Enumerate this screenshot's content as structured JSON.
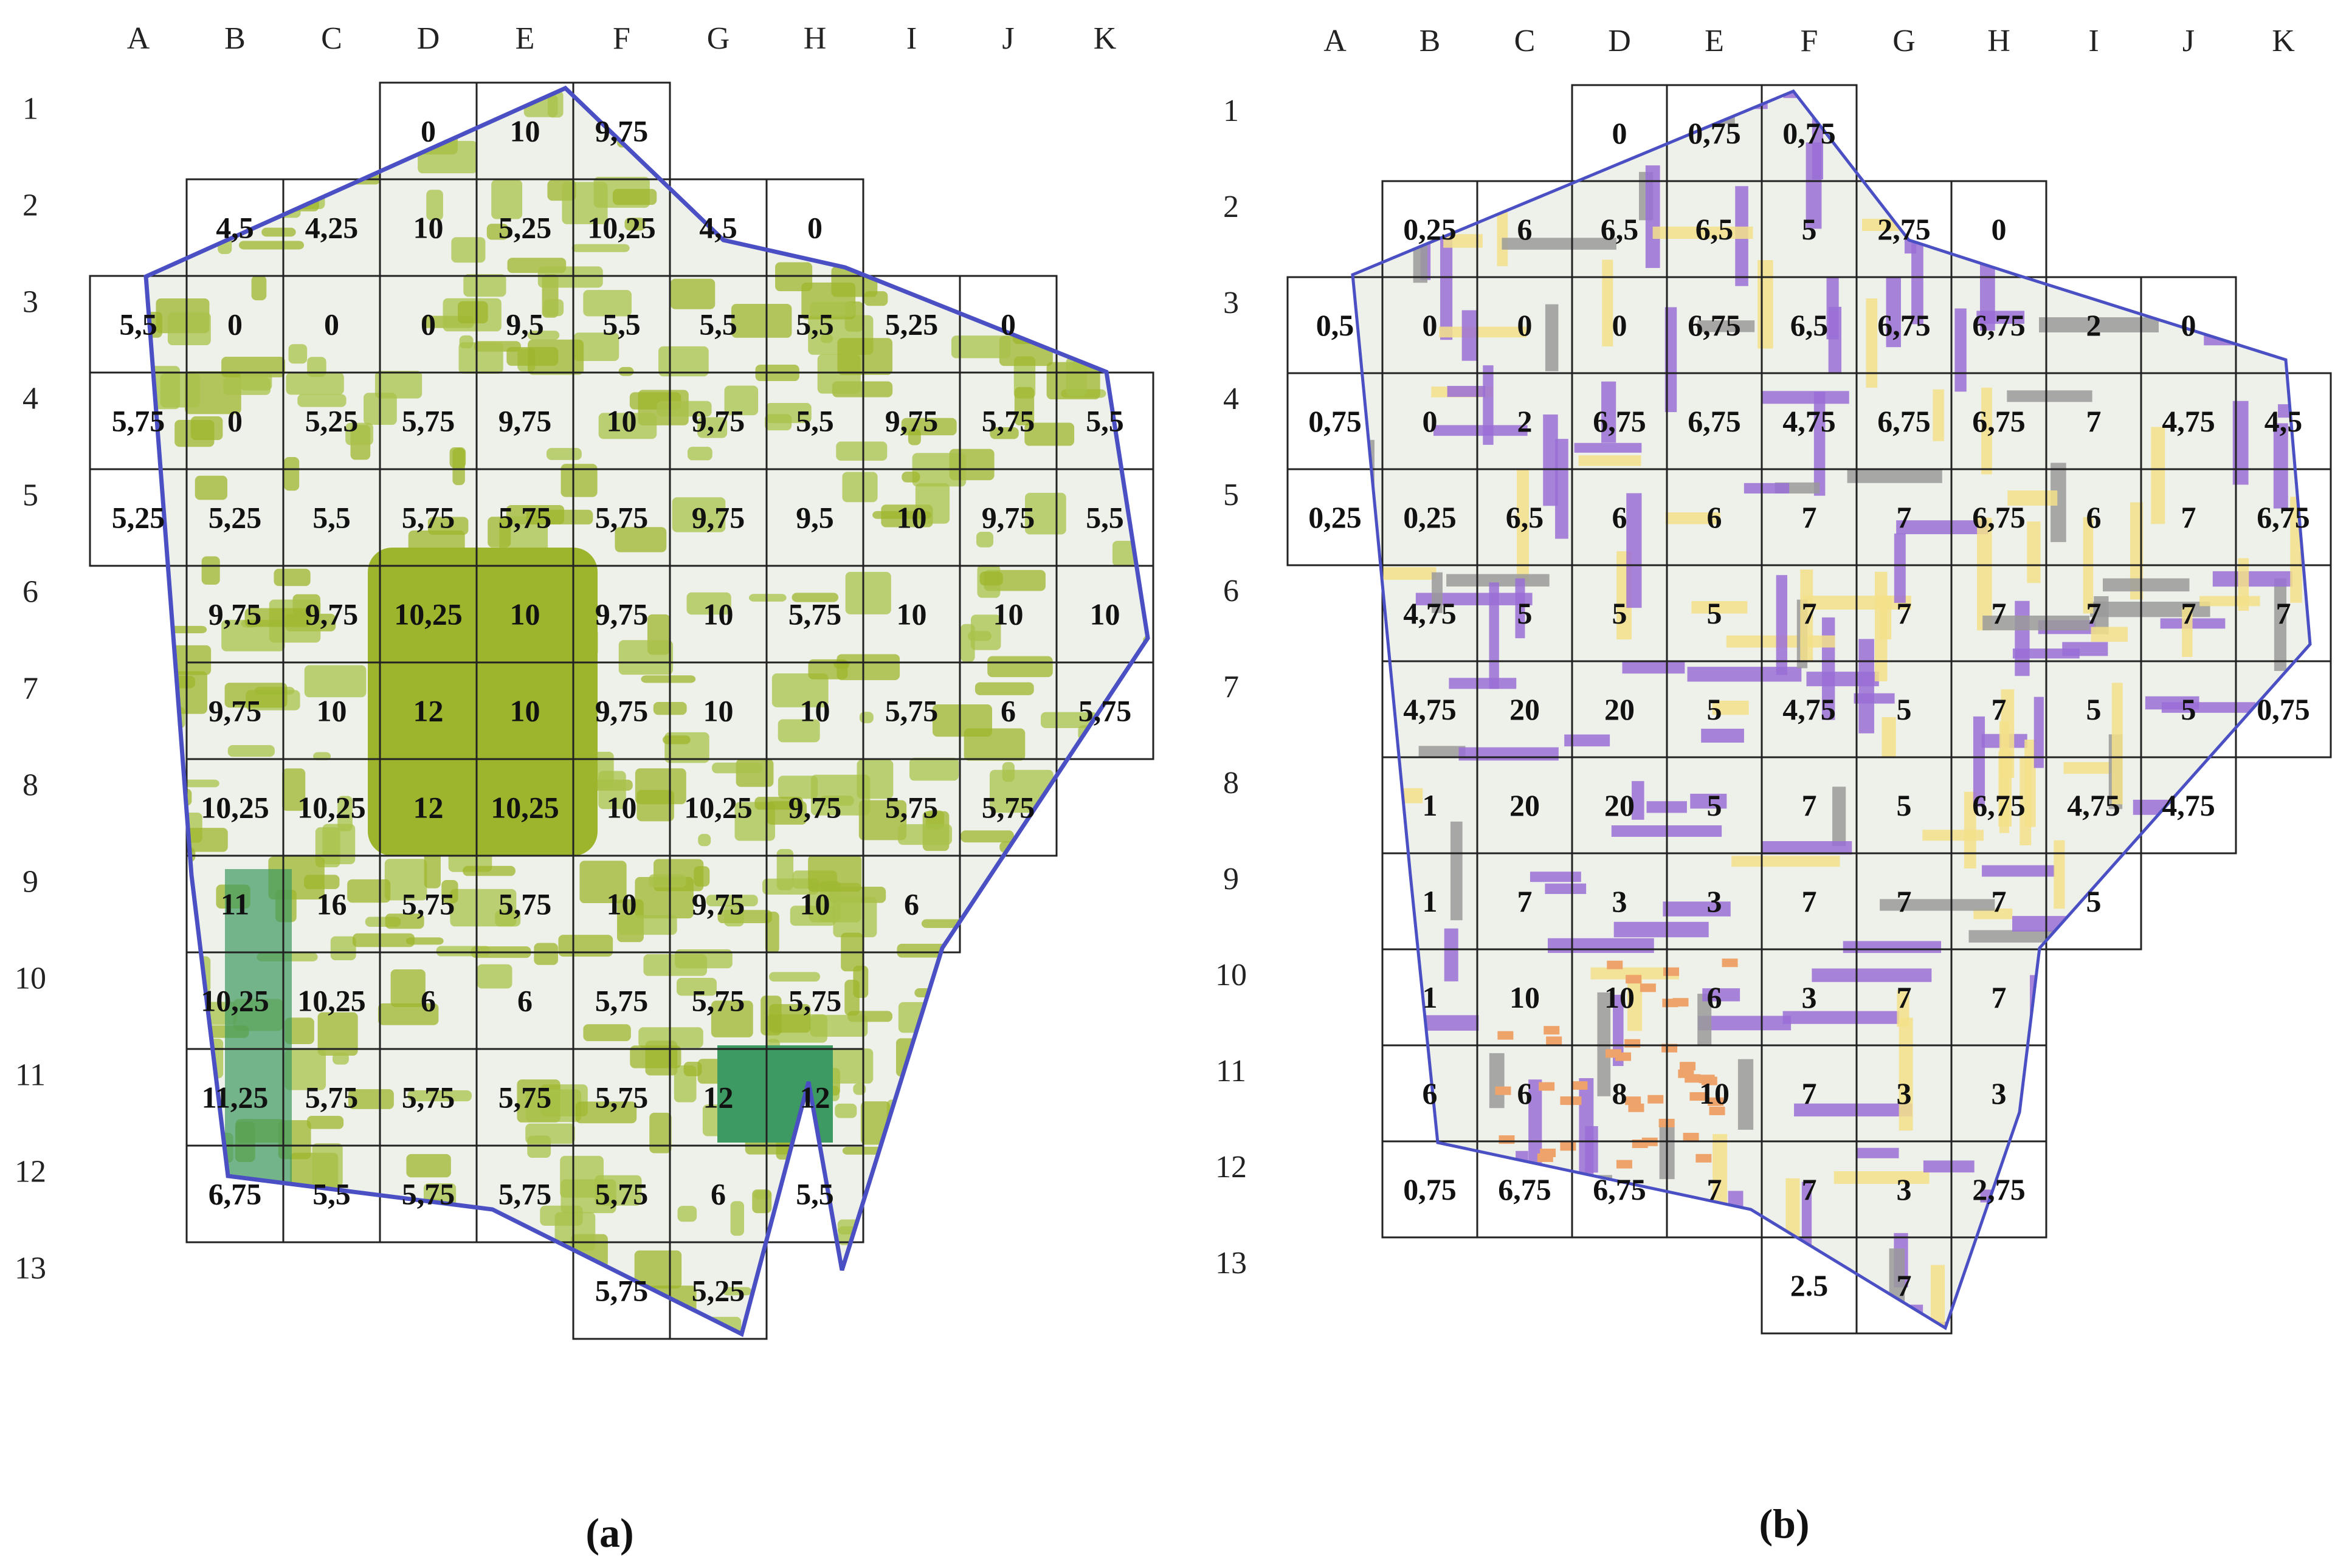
{
  "colors": {
    "boundary": "#4b4fc4",
    "grid_line": "#222222",
    "green_cover_light": "#a8c24a",
    "green_cover_dense": "#9db52c",
    "green_park_dark": "#3e9a63",
    "buildings_purple": "#9a6fd6",
    "buildings_yellow": "#f3e08a",
    "buildings_gray": "#9a9a9a",
    "buildings_orange": "#eea36a",
    "basemap": "#eef1ea"
  },
  "maps": [
    {
      "id": "a",
      "caption": "(a)",
      "columns": [
        "A",
        "B",
        "C",
        "D",
        "E",
        "F",
        "G",
        "H",
        "I",
        "J",
        "K"
      ],
      "rows": [
        "1",
        "2",
        "3",
        "4",
        "5",
        "6",
        "7",
        "8",
        "9",
        "10",
        "11",
        "12",
        "13"
      ],
      "cells": [
        {
          "cell": "D1",
          "value": "0"
        },
        {
          "cell": "E1",
          "value": "10"
        },
        {
          "cell": "F1",
          "value": "9,75"
        },
        {
          "cell": "B2",
          "value": "4,5"
        },
        {
          "cell": "C2",
          "value": "4,25"
        },
        {
          "cell": "D2",
          "value": "10"
        },
        {
          "cell": "E2",
          "value": "5,25"
        },
        {
          "cell": "F2",
          "value": "10,25"
        },
        {
          "cell": "G2",
          "value": "4,5"
        },
        {
          "cell": "H2",
          "value": "0"
        },
        {
          "cell": "A3",
          "value": "5,5"
        },
        {
          "cell": "B3",
          "value": "0"
        },
        {
          "cell": "C3",
          "value": "0"
        },
        {
          "cell": "D3",
          "value": "0"
        },
        {
          "cell": "E3",
          "value": "9,5"
        },
        {
          "cell": "F3",
          "value": "5,5"
        },
        {
          "cell": "G3",
          "value": "5,5"
        },
        {
          "cell": "H3",
          "value": "5,5"
        },
        {
          "cell": "I3",
          "value": "5,25"
        },
        {
          "cell": "J3",
          "value": "0"
        },
        {
          "cell": "A4",
          "value": "5,75"
        },
        {
          "cell": "B4",
          "value": "0"
        },
        {
          "cell": "C4",
          "value": "5,25"
        },
        {
          "cell": "D4",
          "value": "5,75"
        },
        {
          "cell": "E4",
          "value": "9,75"
        },
        {
          "cell": "F4",
          "value": "10"
        },
        {
          "cell": "G4",
          "value": "9,75"
        },
        {
          "cell": "H4",
          "value": "5,5"
        },
        {
          "cell": "I4",
          "value": "9,75"
        },
        {
          "cell": "J4",
          "value": "5,75"
        },
        {
          "cell": "K4",
          "value": "5,5"
        },
        {
          "cell": "A5",
          "value": "5,25"
        },
        {
          "cell": "B5",
          "value": "5,25"
        },
        {
          "cell": "C5",
          "value": "5,5"
        },
        {
          "cell": "D5",
          "value": "5,75"
        },
        {
          "cell": "E5",
          "value": "5,75"
        },
        {
          "cell": "F5",
          "value": "5,75"
        },
        {
          "cell": "G5",
          "value": "9,75"
        },
        {
          "cell": "H5",
          "value": "9,5"
        },
        {
          "cell": "I5",
          "value": "10"
        },
        {
          "cell": "J5",
          "value": "9,75"
        },
        {
          "cell": "K5",
          "value": "5,5"
        },
        {
          "cell": "B6",
          "value": "9,75"
        },
        {
          "cell": "C6",
          "value": "9,75"
        },
        {
          "cell": "D6",
          "value": "10,25"
        },
        {
          "cell": "E6",
          "value": "10"
        },
        {
          "cell": "F6",
          "value": "9,75"
        },
        {
          "cell": "G6",
          "value": "10"
        },
        {
          "cell": "H6",
          "value": "5,75"
        },
        {
          "cell": "I6",
          "value": "10"
        },
        {
          "cell": "J6",
          "value": "10"
        },
        {
          "cell": "K6",
          "value": "10"
        },
        {
          "cell": "B7",
          "value": "9,75"
        },
        {
          "cell": "C7",
          "value": "10"
        },
        {
          "cell": "D7",
          "value": "12"
        },
        {
          "cell": "E7",
          "value": "10"
        },
        {
          "cell": "F7",
          "value": "9,75"
        },
        {
          "cell": "G7",
          "value": "10"
        },
        {
          "cell": "H7",
          "value": "10"
        },
        {
          "cell": "I7",
          "value": "5,75"
        },
        {
          "cell": "J7",
          "value": "6"
        },
        {
          "cell": "K7",
          "value": "5,75"
        },
        {
          "cell": "B8",
          "value": "10,25"
        },
        {
          "cell": "C8",
          "value": "10,25"
        },
        {
          "cell": "D8",
          "value": "12"
        },
        {
          "cell": "E8",
          "value": "10,25"
        },
        {
          "cell": "F8",
          "value": "10"
        },
        {
          "cell": "G8",
          "value": "10,25"
        },
        {
          "cell": "H8",
          "value": "9,75"
        },
        {
          "cell": "I8",
          "value": "5,75"
        },
        {
          "cell": "J8",
          "value": "5,75"
        },
        {
          "cell": "B9",
          "value": "11"
        },
        {
          "cell": "C9",
          "value": "16"
        },
        {
          "cell": "D9",
          "value": "5,75"
        },
        {
          "cell": "E9",
          "value": "5,75"
        },
        {
          "cell": "F9",
          "value": "10"
        },
        {
          "cell": "G9",
          "value": "9,75"
        },
        {
          "cell": "H9",
          "value": "10"
        },
        {
          "cell": "I9",
          "value": "6"
        },
        {
          "cell": "B10",
          "value": "10,25"
        },
        {
          "cell": "C10",
          "value": "10,25"
        },
        {
          "cell": "D10",
          "value": "6"
        },
        {
          "cell": "E10",
          "value": "6"
        },
        {
          "cell": "F10",
          "value": "5,75"
        },
        {
          "cell": "G10",
          "value": "5,75"
        },
        {
          "cell": "H10",
          "value": "5,75"
        },
        {
          "cell": "B11",
          "value": "11,25"
        },
        {
          "cell": "C11",
          "value": "5,75"
        },
        {
          "cell": "D11",
          "value": "5,75"
        },
        {
          "cell": "E11",
          "value": "5,75"
        },
        {
          "cell": "F11",
          "value": "5,75"
        },
        {
          "cell": "G11",
          "value": "12"
        },
        {
          "cell": "H11",
          "value": "12"
        },
        {
          "cell": "B12",
          "value": "6,75"
        },
        {
          "cell": "C12",
          "value": "5,5"
        },
        {
          "cell": "D12",
          "value": "5,75"
        },
        {
          "cell": "E12",
          "value": "5,75"
        },
        {
          "cell": "F12",
          "value": "5,75"
        },
        {
          "cell": "G12",
          "value": "6"
        },
        {
          "cell": "H12",
          "value": "5,5"
        },
        {
          "cell": "F13",
          "value": "5,75"
        },
        {
          "cell": "G13",
          "value": "5,25"
        }
      ]
    },
    {
      "id": "b",
      "caption": "(b)",
      "columns": [
        "A",
        "B",
        "C",
        "D",
        "E",
        "F",
        "G",
        "H",
        "I",
        "J",
        "K"
      ],
      "rows": [
        "1",
        "2",
        "3",
        "4",
        "5",
        "6",
        "7",
        "8",
        "9",
        "10",
        "11",
        "12",
        "13"
      ],
      "cells": [
        {
          "cell": "D1",
          "value": "0"
        },
        {
          "cell": "E1",
          "value": "0,75"
        },
        {
          "cell": "F1",
          "value": "0,75"
        },
        {
          "cell": "B2",
          "value": "0,25"
        },
        {
          "cell": "C2",
          "value": "6"
        },
        {
          "cell": "D2",
          "value": "6,5"
        },
        {
          "cell": "E2",
          "value": "6,5"
        },
        {
          "cell": "F2",
          "value": "5"
        },
        {
          "cell": "G2",
          "value": "2,75"
        },
        {
          "cell": "H2",
          "value": "0"
        },
        {
          "cell": "A3",
          "value": "0,5"
        },
        {
          "cell": "B3",
          "value": "0"
        },
        {
          "cell": "C3",
          "value": "0"
        },
        {
          "cell": "D3",
          "value": "0"
        },
        {
          "cell": "E3",
          "value": "6,75"
        },
        {
          "cell": "F3",
          "value": "6,5"
        },
        {
          "cell": "G3",
          "value": "6,75"
        },
        {
          "cell": "H3",
          "value": "6,75"
        },
        {
          "cell": "I3",
          "value": "2"
        },
        {
          "cell": "J3",
          "value": "0"
        },
        {
          "cell": "A4",
          "value": "0,75"
        },
        {
          "cell": "B4",
          "value": "0"
        },
        {
          "cell": "C4",
          "value": "2"
        },
        {
          "cell": "D4",
          "value": "6,75"
        },
        {
          "cell": "E4",
          "value": "6,75"
        },
        {
          "cell": "F4",
          "value": "4,75"
        },
        {
          "cell": "G4",
          "value": "6,75"
        },
        {
          "cell": "H4",
          "value": "6,75"
        },
        {
          "cell": "I4",
          "value": "7"
        },
        {
          "cell": "J4",
          "value": "4,75"
        },
        {
          "cell": "K4",
          "value": "4,5"
        },
        {
          "cell": "A5",
          "value": "0,25"
        },
        {
          "cell": "B5",
          "value": "0,25"
        },
        {
          "cell": "C5",
          "value": "6,5"
        },
        {
          "cell": "D5",
          "value": "6"
        },
        {
          "cell": "E5",
          "value": "6"
        },
        {
          "cell": "F5",
          "value": "7"
        },
        {
          "cell": "G5",
          "value": "7"
        },
        {
          "cell": "H5",
          "value": "6,75"
        },
        {
          "cell": "I5",
          "value": "6"
        },
        {
          "cell": "J5",
          "value": "7"
        },
        {
          "cell": "K5",
          "value": "6,75"
        },
        {
          "cell": "B6",
          "value": "4,75"
        },
        {
          "cell": "C6",
          "value": "5"
        },
        {
          "cell": "D6",
          "value": "5"
        },
        {
          "cell": "E6",
          "value": "5"
        },
        {
          "cell": "F6",
          "value": "7"
        },
        {
          "cell": "G6",
          "value": "7"
        },
        {
          "cell": "H6",
          "value": "7"
        },
        {
          "cell": "I6",
          "value": "7"
        },
        {
          "cell": "J6",
          "value": "7"
        },
        {
          "cell": "K6",
          "value": "7"
        },
        {
          "cell": "B7",
          "value": "4,75"
        },
        {
          "cell": "C7",
          "value": "20"
        },
        {
          "cell": "D7",
          "value": "20"
        },
        {
          "cell": "E7",
          "value": "5"
        },
        {
          "cell": "F7",
          "value": "4,75"
        },
        {
          "cell": "G7",
          "value": "5"
        },
        {
          "cell": "H7",
          "value": "7"
        },
        {
          "cell": "I7",
          "value": "5"
        },
        {
          "cell": "J7",
          "value": "5"
        },
        {
          "cell": "K7",
          "value": "0,75"
        },
        {
          "cell": "B8",
          "value": "1"
        },
        {
          "cell": "C8",
          "value": "20"
        },
        {
          "cell": "D8",
          "value": "20"
        },
        {
          "cell": "E8",
          "value": "5"
        },
        {
          "cell": "F8",
          "value": "7"
        },
        {
          "cell": "G8",
          "value": "5"
        },
        {
          "cell": "H8",
          "value": "6,75"
        },
        {
          "cell": "I8",
          "value": "4,75"
        },
        {
          "cell": "J8",
          "value": "4,75"
        },
        {
          "cell": "B9",
          "value": "1"
        },
        {
          "cell": "C9",
          "value": "7"
        },
        {
          "cell": "D9",
          "value": "3"
        },
        {
          "cell": "E9",
          "value": "3"
        },
        {
          "cell": "F9",
          "value": "7"
        },
        {
          "cell": "G9",
          "value": "7"
        },
        {
          "cell": "H9",
          "value": "7"
        },
        {
          "cell": "I9",
          "value": "5"
        },
        {
          "cell": "B10",
          "value": "1"
        },
        {
          "cell": "C10",
          "value": "10"
        },
        {
          "cell": "D10",
          "value": "10"
        },
        {
          "cell": "E10",
          "value": "6"
        },
        {
          "cell": "F10",
          "value": "3"
        },
        {
          "cell": "G10",
          "value": "7"
        },
        {
          "cell": "H10",
          "value": "7"
        },
        {
          "cell": "B11",
          "value": "6"
        },
        {
          "cell": "C11",
          "value": "6"
        },
        {
          "cell": "D11",
          "value": "8"
        },
        {
          "cell": "E11",
          "value": "10"
        },
        {
          "cell": "F11",
          "value": "7"
        },
        {
          "cell": "G11",
          "value": "3"
        },
        {
          "cell": "H11",
          "value": "3"
        },
        {
          "cell": "B12",
          "value": "0,75"
        },
        {
          "cell": "C12",
          "value": "6,75"
        },
        {
          "cell": "D12",
          "value": "6,75"
        },
        {
          "cell": "E12",
          "value": "7"
        },
        {
          "cell": "F12",
          "value": "7"
        },
        {
          "cell": "G12",
          "value": "3"
        },
        {
          "cell": "H12",
          "value": "2,75"
        },
        {
          "cell": "F13",
          "value": "2.5"
        },
        {
          "cell": "G13",
          "value": "7"
        }
      ]
    }
  ]
}
